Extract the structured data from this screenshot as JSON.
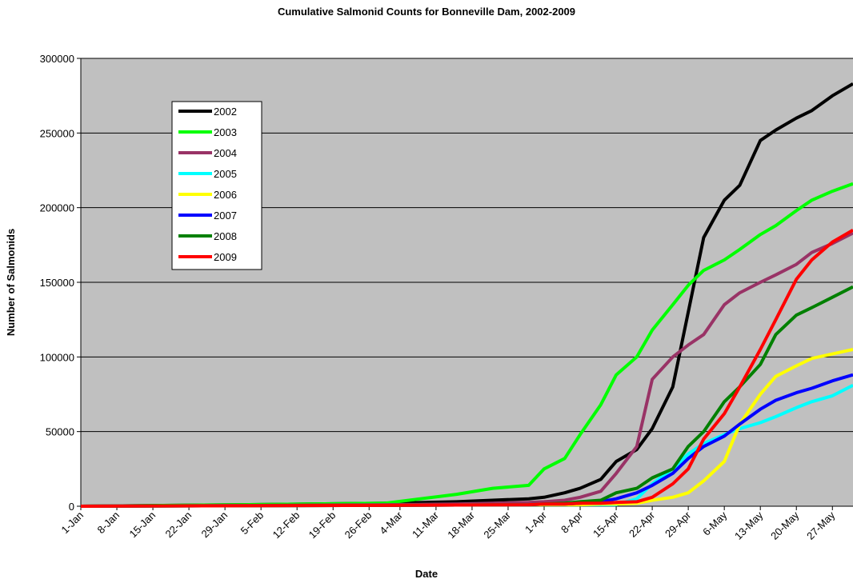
{
  "chart_data": {
    "type": "line",
    "title": "Cumulative Salmonid Counts for Bonneville Dam, 2002-2009",
    "x_label": "Date",
    "y_label": "Number of Salmonids",
    "x": [
      "1-Jan",
      "1-Feb",
      "1-Mar",
      "15-Mar",
      "22-Mar",
      "29-Mar",
      "1-Apr",
      "5-Apr",
      "8-Apr",
      "12-Apr",
      "15-Apr",
      "19-Apr",
      "22-Apr",
      "26-Apr",
      "29-Apr",
      "2-May",
      "6-May",
      "9-May",
      "13-May",
      "16-May",
      "20-May",
      "23-May",
      "27-May",
      "31-May"
    ],
    "xlim": [
      "1-Jan",
      "31-May"
    ],
    "xticks": [
      "1-Jan",
      "8-Jan",
      "15-Jan",
      "22-Jan",
      "29-Jan",
      "5-Feb",
      "12-Feb",
      "19-Feb",
      "26-Feb",
      "4-Mar",
      "11-Mar",
      "18-Mar",
      "25-Mar",
      "1-Apr",
      "8-Apr",
      "15-Apr",
      "22-Apr",
      "29-Apr",
      "6-May",
      "13-May",
      "20-May",
      "27-May"
    ],
    "ylim": [
      0,
      300000
    ],
    "yticks": [
      0,
      50000,
      100000,
      150000,
      200000,
      250000,
      300000
    ],
    "grid": true,
    "legend": "upper-left",
    "series": [
      {
        "name": "2002",
        "color": "#000000",
        "values": [
          0,
          1000,
          2000,
          3000,
          4000,
          5000,
          6000,
          9000,
          12000,
          18000,
          30000,
          38000,
          52000,
          80000,
          130000,
          180000,
          205000,
          215000,
          245000,
          252000,
          260000,
          265000,
          275000,
          283000
        ]
      },
      {
        "name": "2003",
        "color": "#00ff00",
        "values": [
          0,
          1000,
          2000,
          8000,
          12000,
          14000,
          25000,
          32000,
          48000,
          68000,
          88000,
          100000,
          118000,
          135000,
          148000,
          158000,
          165000,
          172000,
          182000,
          188000,
          198000,
          205000,
          211000,
          216000
        ]
      },
      {
        "name": "2004",
        "color": "#993366",
        "values": [
          0,
          500,
          1000,
          1500,
          2000,
          2500,
          3000,
          4000,
          6000,
          10000,
          22000,
          40000,
          85000,
          100000,
          108000,
          115000,
          135000,
          143000,
          150000,
          155000,
          162000,
          170000,
          176000,
          183000
        ]
      },
      {
        "name": "2005",
        "color": "#00ffff",
        "values": [
          0,
          300,
          600,
          800,
          900,
          1000,
          1000,
          1000,
          1000,
          1000,
          1000,
          5000,
          15000,
          25000,
          35000,
          42000,
          48000,
          52000,
          56000,
          60000,
          66000,
          70000,
          74000,
          81000
        ]
      },
      {
        "name": "2006",
        "color": "#ffff00",
        "values": [
          0,
          300,
          600,
          800,
          900,
          1000,
          1000,
          1000,
          1000,
          1500,
          1500,
          2000,
          4000,
          6000,
          9000,
          17000,
          30000,
          55000,
          75000,
          87000,
          94000,
          99000,
          102000,
          105000
        ]
      },
      {
        "name": "2007",
        "color": "#0000ff",
        "values": [
          0,
          300,
          600,
          800,
          900,
          1000,
          1500,
          1500,
          2000,
          3000,
          5000,
          9000,
          14000,
          22000,
          32000,
          40000,
          47000,
          55000,
          65000,
          71000,
          76000,
          79000,
          84000,
          88000
        ]
      },
      {
        "name": "2008",
        "color": "#008000",
        "values": [
          0,
          300,
          600,
          800,
          900,
          1000,
          1500,
          2000,
          3000,
          4000,
          9000,
          12000,
          19000,
          25000,
          40000,
          50000,
          70000,
          80000,
          95000,
          115000,
          128000,
          133000,
          140000,
          147000
        ]
      },
      {
        "name": "2009",
        "color": "#ff0000",
        "values": [
          0,
          300,
          600,
          800,
          900,
          1000,
          1500,
          1500,
          2000,
          2000,
          2500,
          3000,
          6000,
          15000,
          25000,
          45000,
          62000,
          80000,
          105000,
          125000,
          152000,
          165000,
          177000,
          185000
        ]
      }
    ]
  }
}
